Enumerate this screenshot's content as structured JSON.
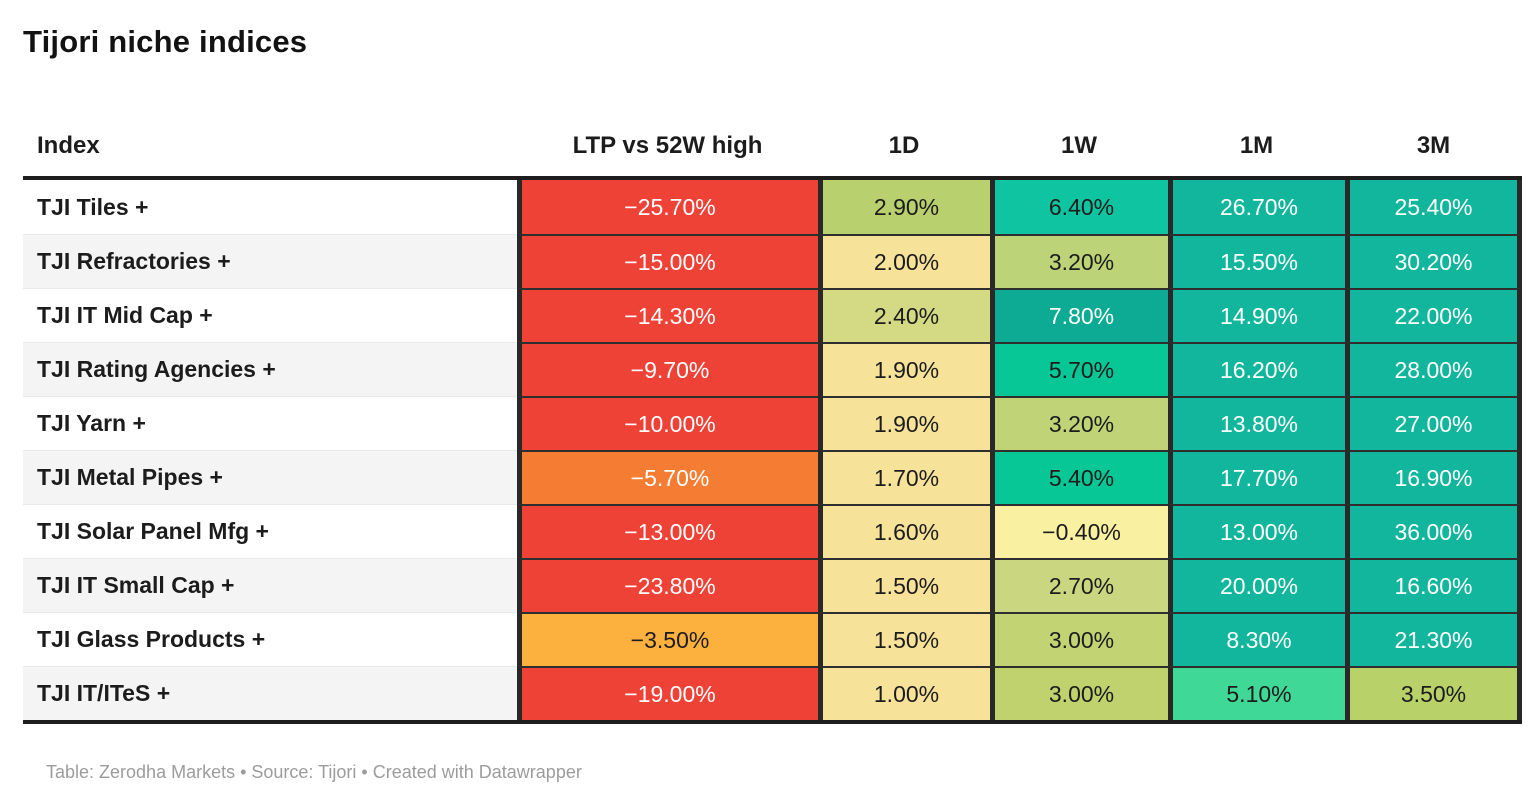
{
  "title": "Tijori niche indices",
  "footer": "Table: Zerodha Markets • Source: Tijori • Created with Datawrapper",
  "colors": {
    "negative_strong": "#ee4237",
    "negative_medium": "#f57d33",
    "negative_mild": "#fcb13e",
    "neutral_yellow": "#f7e29a",
    "yellow_green": "#c0d475",
    "teal": "#12b69c",
    "mint": "#3fd897",
    "border_dark": "#282828",
    "header_rule": "#1d1d1d"
  },
  "table": {
    "columns": [
      "Index",
      "LTP vs 52W high",
      "1D",
      "1W",
      "1M",
      "3M"
    ],
    "rows": [
      {
        "index": "TJI Tiles +",
        "cells": [
          {
            "value": "−25.70%",
            "bg": "#ee4237",
            "fg": "#ffffff"
          },
          {
            "value": "2.90%",
            "bg": "#b9d06e",
            "fg": "#1c1c1c"
          },
          {
            "value": "6.40%",
            "bg": "#0fc4a0",
            "fg": "#1c1c1c"
          },
          {
            "value": "26.70%",
            "bg": "#12b69c",
            "fg": "#ffffff"
          },
          {
            "value": "25.40%",
            "bg": "#12b69c",
            "fg": "#ffffff"
          }
        ]
      },
      {
        "index": "TJI Refractories +",
        "cells": [
          {
            "value": "−15.00%",
            "bg": "#ee4237",
            "fg": "#ffffff"
          },
          {
            "value": "2.00%",
            "bg": "#f7e29a",
            "fg": "#1c1c1c"
          },
          {
            "value": "3.20%",
            "bg": "#bcd377",
            "fg": "#1c1c1c"
          },
          {
            "value": "15.50%",
            "bg": "#12b69c",
            "fg": "#ffffff"
          },
          {
            "value": "30.20%",
            "bg": "#12b69c",
            "fg": "#ffffff"
          }
        ]
      },
      {
        "index": "TJI IT Mid Cap +",
        "cells": [
          {
            "value": "−14.30%",
            "bg": "#ee4237",
            "fg": "#ffffff"
          },
          {
            "value": "2.40%",
            "bg": "#d3da83",
            "fg": "#1c1c1c"
          },
          {
            "value": "7.80%",
            "bg": "#0dab93",
            "fg": "#ffffff"
          },
          {
            "value": "14.90%",
            "bg": "#12b69c",
            "fg": "#ffffff"
          },
          {
            "value": "22.00%",
            "bg": "#12b69c",
            "fg": "#ffffff"
          }
        ]
      },
      {
        "index": "TJI Rating Agencies +",
        "cells": [
          {
            "value": "−9.70%",
            "bg": "#ee4237",
            "fg": "#ffffff"
          },
          {
            "value": "1.90%",
            "bg": "#f7e29a",
            "fg": "#1c1c1c"
          },
          {
            "value": "5.70%",
            "bg": "#06c795",
            "fg": "#1c1c1c"
          },
          {
            "value": "16.20%",
            "bg": "#12b69c",
            "fg": "#ffffff"
          },
          {
            "value": "28.00%",
            "bg": "#12b69c",
            "fg": "#ffffff"
          }
        ]
      },
      {
        "index": "TJI Yarn +",
        "cells": [
          {
            "value": "−10.00%",
            "bg": "#ee4237",
            "fg": "#ffffff"
          },
          {
            "value": "1.90%",
            "bg": "#f7e29a",
            "fg": "#1c1c1c"
          },
          {
            "value": "3.20%",
            "bg": "#c0d477",
            "fg": "#1c1c1c"
          },
          {
            "value": "13.80%",
            "bg": "#12b69c",
            "fg": "#ffffff"
          },
          {
            "value": "27.00%",
            "bg": "#12b69c",
            "fg": "#ffffff"
          }
        ]
      },
      {
        "index": "TJI Metal Pipes +",
        "cells": [
          {
            "value": "−5.70%",
            "bg": "#f57d33",
            "fg": "#ffffff"
          },
          {
            "value": "1.70%",
            "bg": "#f7e29a",
            "fg": "#1c1c1c"
          },
          {
            "value": "5.40%",
            "bg": "#06c795",
            "fg": "#1c1c1c"
          },
          {
            "value": "17.70%",
            "bg": "#12b69c",
            "fg": "#ffffff"
          },
          {
            "value": "16.90%",
            "bg": "#12b69c",
            "fg": "#ffffff"
          }
        ]
      },
      {
        "index": "TJI Solar Panel Mfg +",
        "cells": [
          {
            "value": "−13.00%",
            "bg": "#ee4237",
            "fg": "#ffffff"
          },
          {
            "value": "1.60%",
            "bg": "#f7e29a",
            "fg": "#1c1c1c"
          },
          {
            "value": "−0.40%",
            "bg": "#f9f0a2",
            "fg": "#1c1c1c"
          },
          {
            "value": "13.00%",
            "bg": "#12b69c",
            "fg": "#ffffff"
          },
          {
            "value": "36.00%",
            "bg": "#12b69c",
            "fg": "#ffffff"
          }
        ]
      },
      {
        "index": "TJI IT Small Cap +",
        "cells": [
          {
            "value": "−23.80%",
            "bg": "#ee4237",
            "fg": "#ffffff"
          },
          {
            "value": "1.50%",
            "bg": "#f7e29a",
            "fg": "#1c1c1c"
          },
          {
            "value": "2.70%",
            "bg": "#cbd780",
            "fg": "#1c1c1c"
          },
          {
            "value": "20.00%",
            "bg": "#12b69c",
            "fg": "#ffffff"
          },
          {
            "value": "16.60%",
            "bg": "#12b69c",
            "fg": "#ffffff"
          }
        ]
      },
      {
        "index": "TJI Glass Products +",
        "cells": [
          {
            "value": "−3.50%",
            "bg": "#fcb13e",
            "fg": "#1c1c1c"
          },
          {
            "value": "1.50%",
            "bg": "#f7e29a",
            "fg": "#1c1c1c"
          },
          {
            "value": "3.00%",
            "bg": "#c2d373",
            "fg": "#1c1c1c"
          },
          {
            "value": "8.30%",
            "bg": "#12b69c",
            "fg": "#ffffff"
          },
          {
            "value": "21.30%",
            "bg": "#12b69c",
            "fg": "#ffffff"
          }
        ]
      },
      {
        "index": "TJI IT/ITeS +",
        "cells": [
          {
            "value": "−19.00%",
            "bg": "#ee4237",
            "fg": "#ffffff"
          },
          {
            "value": "1.00%",
            "bg": "#f7e29a",
            "fg": "#1c1c1c"
          },
          {
            "value": "3.00%",
            "bg": "#bfd26e",
            "fg": "#1c1c1c"
          },
          {
            "value": "5.10%",
            "bg": "#3fd897",
            "fg": "#1c1c1c"
          },
          {
            "value": "3.50%",
            "bg": "#b9d169",
            "fg": "#1c1c1c"
          }
        ]
      }
    ]
  },
  "chart_data": {
    "type": "table",
    "title": "Tijori niche indices",
    "columns": [
      "Index",
      "LTP vs 52W high",
      "1D",
      "1W",
      "1M",
      "3M"
    ],
    "units": "percent",
    "color_scale": "red-yellow-green heatmap",
    "rows": [
      [
        "TJI Tiles +",
        -25.7,
        2.9,
        6.4,
        26.7,
        25.4
      ],
      [
        "TJI Refractories +",
        -15.0,
        2.0,
        3.2,
        15.5,
        30.2
      ],
      [
        "TJI IT Mid Cap +",
        -14.3,
        2.4,
        7.8,
        14.9,
        22.0
      ],
      [
        "TJI Rating Agencies +",
        -9.7,
        1.9,
        5.7,
        16.2,
        28.0
      ],
      [
        "TJI Yarn +",
        -10.0,
        1.9,
        3.2,
        13.8,
        27.0
      ],
      [
        "TJI Metal Pipes +",
        -5.7,
        1.7,
        5.4,
        17.7,
        16.9
      ],
      [
        "TJI Solar Panel Mfg +",
        -13.0,
        1.6,
        -0.4,
        13.0,
        36.0
      ],
      [
        "TJI IT Small Cap +",
        -23.8,
        1.5,
        2.7,
        20.0,
        16.6
      ],
      [
        "TJI Glass Products +",
        -3.5,
        1.5,
        3.0,
        8.3,
        21.3
      ],
      [
        "TJI IT/ITeS +",
        -19.0,
        1.0,
        3.0,
        5.1,
        3.5
      ]
    ],
    "footer": "Table: Zerodha Markets • Source: Tijori • Created with Datawrapper"
  }
}
